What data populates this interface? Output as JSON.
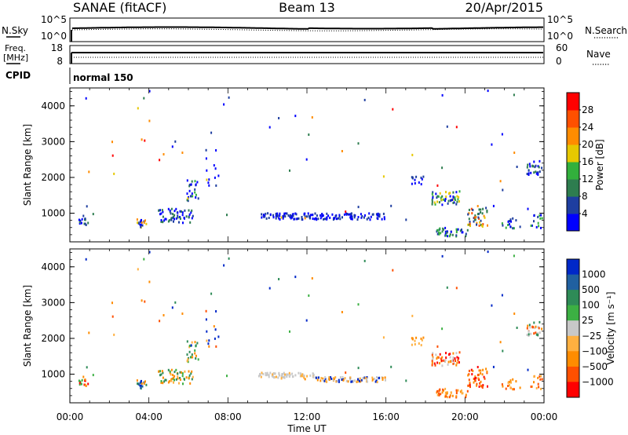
{
  "header": {
    "radar": "SANAE (fitACF)",
    "beam": "Beam 13",
    "date": "20/Apr/2015"
  },
  "noise_panel": {
    "left_label": "N.Sky",
    "right_label": "N.Search",
    "left_ticks": [
      "10^5",
      "10^0"
    ],
    "right_ticks": [
      "10^5",
      "10^0"
    ]
  },
  "freq_panel": {
    "left_label_top": "Freq.",
    "left_label_bottom": "[MHz]",
    "right_label": "Nave",
    "left_ticks": [
      "18",
      "8"
    ],
    "right_ticks": [
      "60",
      "0"
    ]
  },
  "cpid_panel": {
    "label": "CPID",
    "text": "normal 150"
  },
  "chart_data": [
    {
      "type": "heatmap",
      "name": "power",
      "ylabel": "Slant Range [km]",
      "y_ticks": [
        1000,
        2000,
        3000,
        4000
      ],
      "ylim": [
        200,
        4500
      ],
      "xlim": [
        0,
        24
      ],
      "colorbar": {
        "label": "Power [dB]",
        "ticks": [
          "4",
          "8",
          "12",
          "16",
          "20",
          "24",
          "28"
        ],
        "colors": [
          "#0000ff",
          "#1e3ea0",
          "#2e7d4f",
          "#32b03c",
          "#e6c800",
          "#ff8c00",
          "#ff5000",
          "#ff0000"
        ]
      },
      "scatter_regions": [
        {
          "t": 0.6,
          "r": 850,
          "n": 14,
          "dt": 0.3,
          "dr": 150,
          "levels": [
            0,
            1,
            1,
            2
          ]
        },
        {
          "t": 3.6,
          "r": 750,
          "n": 18,
          "dt": 0.25,
          "dr": 130,
          "levels": [
            0,
            1,
            4,
            5
          ]
        },
        {
          "t": 5.3,
          "r": 950,
          "n": 60,
          "dt": 0.9,
          "dr": 200,
          "levels": [
            0,
            0,
            1,
            2
          ]
        },
        {
          "t": 6.2,
          "r": 1650,
          "n": 24,
          "dt": 0.3,
          "dr": 300,
          "levels": [
            0,
            1,
            2,
            3
          ]
        },
        {
          "t": 7.2,
          "r": 2300,
          "n": 12,
          "dt": 0.35,
          "dr": 500,
          "levels": [
            0,
            0,
            1
          ]
        },
        {
          "t": 12.8,
          "r": 940,
          "n": 150,
          "dt": 3.2,
          "dr": 90,
          "levels": [
            0,
            0,
            1,
            1
          ]
        },
        {
          "t": 17.5,
          "r": 1950,
          "n": 12,
          "dt": 0.5,
          "dr": 120,
          "levels": [
            0,
            1
          ]
        },
        {
          "t": 19.0,
          "r": 1450,
          "n": 50,
          "dt": 0.7,
          "dr": 200,
          "levels": [
            0,
            1,
            2,
            3,
            4
          ]
        },
        {
          "t": 19.2,
          "r": 500,
          "n": 40,
          "dt": 0.9,
          "dr": 120,
          "levels": [
            0,
            1,
            2,
            3
          ]
        },
        {
          "t": 20.6,
          "r": 950,
          "n": 45,
          "dt": 0.5,
          "dr": 300,
          "levels": [
            1,
            2,
            4,
            5,
            6
          ]
        },
        {
          "t": 22.3,
          "r": 750,
          "n": 18,
          "dt": 0.5,
          "dr": 150,
          "levels": [
            0,
            1,
            3
          ]
        },
        {
          "t": 23.5,
          "r": 2300,
          "n": 28,
          "dt": 0.4,
          "dr": 200,
          "levels": [
            0,
            1,
            2
          ]
        },
        {
          "t": 23.6,
          "r": 800,
          "n": 14,
          "dt": 0.3,
          "dr": 200,
          "levels": [
            0,
            1,
            3
          ]
        },
        {
          "t": 12.0,
          "r": 2700,
          "n": 60,
          "dt": 11.5,
          "dr": 1900,
          "levels": [
            0,
            1,
            2,
            4,
            5,
            7
          ]
        }
      ]
    },
    {
      "type": "heatmap",
      "name": "velocity",
      "xlabel": "Time UT",
      "ylabel": "Slant Range [km]",
      "x_ticks": [
        "00:00",
        "04:00",
        "08:00",
        "12:00",
        "16:00",
        "20:00",
        "00:00"
      ],
      "y_ticks": [
        1000,
        2000,
        3000,
        4000
      ],
      "ylim": [
        200,
        4500
      ],
      "xlim": [
        0,
        24
      ],
      "colorbar": {
        "label": "Velocity [m s⁻¹]",
        "ticks": [
          "1000",
          "500",
          "100",
          "25",
          "−25",
          "−100",
          "−500",
          "−1000"
        ],
        "colors": [
          "#0028c8",
          "#2060a0",
          "#2e8b57",
          "#3cb043",
          "#c8c8c8",
          "#ffb040",
          "#ff8c00",
          "#ff5000",
          "#ff0000"
        ]
      },
      "scatter_regions": [
        {
          "t": 0.6,
          "r": 850,
          "n": 14,
          "dt": 0.3,
          "dr": 150,
          "levels": [
            3,
            5,
            6,
            8
          ]
        },
        {
          "t": 3.6,
          "r": 750,
          "n": 18,
          "dt": 0.25,
          "dr": 130,
          "levels": [
            0,
            1,
            2,
            6
          ]
        },
        {
          "t": 5.3,
          "r": 950,
          "n": 60,
          "dt": 0.9,
          "dr": 200,
          "levels": [
            2,
            3,
            5,
            6
          ]
        },
        {
          "t": 6.2,
          "r": 1650,
          "n": 24,
          "dt": 0.3,
          "dr": 300,
          "levels": [
            2,
            3,
            5,
            6
          ]
        },
        {
          "t": 7.2,
          "r": 2300,
          "n": 12,
          "dt": 0.35,
          "dr": 500,
          "levels": [
            0,
            6,
            7
          ]
        },
        {
          "t": 11.0,
          "r": 1000,
          "n": 70,
          "dt": 1.5,
          "dr": 70,
          "levels": [
            4,
            4,
            4,
            5
          ]
        },
        {
          "t": 14.2,
          "r": 880,
          "n": 80,
          "dt": 1.8,
          "dr": 70,
          "levels": [
            4,
            5,
            6,
            0
          ]
        },
        {
          "t": 17.5,
          "r": 1950,
          "n": 12,
          "dt": 0.5,
          "dr": 120,
          "levels": [
            5,
            6
          ]
        },
        {
          "t": 19.0,
          "r": 1450,
          "n": 50,
          "dt": 0.7,
          "dr": 200,
          "levels": [
            4,
            6,
            7,
            8
          ]
        },
        {
          "t": 19.2,
          "r": 500,
          "n": 40,
          "dt": 0.9,
          "dr": 120,
          "levels": [
            5,
            6,
            7
          ]
        },
        {
          "t": 20.6,
          "r": 950,
          "n": 45,
          "dt": 0.5,
          "dr": 300,
          "levels": [
            6,
            7,
            8
          ]
        },
        {
          "t": 22.3,
          "r": 750,
          "n": 18,
          "dt": 0.5,
          "dr": 150,
          "levels": [
            5,
            6,
            7
          ]
        },
        {
          "t": 23.5,
          "r": 2300,
          "n": 28,
          "dt": 0.4,
          "dr": 200,
          "levels": [
            2,
            4,
            6,
            7
          ]
        },
        {
          "t": 23.6,
          "r": 800,
          "n": 14,
          "dt": 0.3,
          "dr": 200,
          "levels": [
            5,
            6,
            7
          ]
        },
        {
          "t": 12.0,
          "r": 2700,
          "n": 60,
          "dt": 11.5,
          "dr": 1900,
          "levels": [
            0,
            2,
            3,
            5,
            6,
            7
          ]
        }
      ]
    }
  ]
}
